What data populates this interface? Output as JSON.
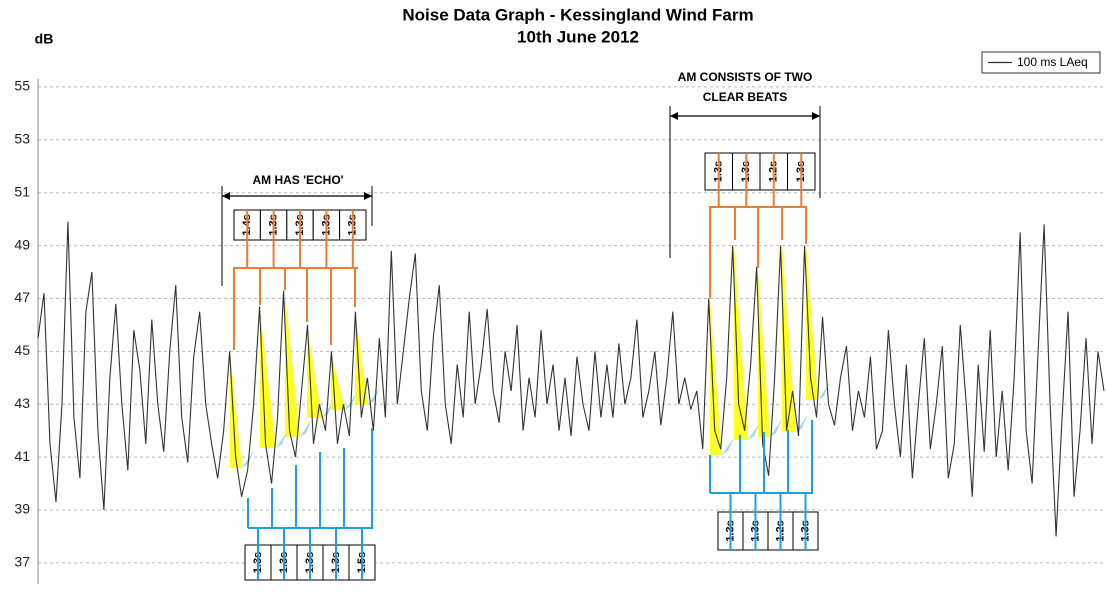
{
  "chart_data": {
    "type": "line",
    "title": "Noise Data Graph - Kessingland  Wind Farm",
    "subtitle": "10th June 2012",
    "y_label": "dB",
    "ylim": [
      36.2,
      55.3
    ],
    "yticks": [
      37,
      39,
      41,
      43,
      45,
      47,
      49,
      51,
      53,
      55
    ],
    "grid": true,
    "legend": "upper right",
    "series": [
      {
        "name": "100 ms LAeq",
        "color": "#333333",
        "values": [
          45.5,
          47.2,
          41.5,
          39.3,
          43,
          49.9,
          42.5,
          40.2,
          46.5,
          48,
          42,
          39,
          44,
          46.8,
          43,
          40.5,
          45.8,
          44.3,
          41.5,
          46.2,
          43,
          41.2,
          45,
          47.5,
          42.5,
          40.8,
          44.8,
          46.5,
          43,
          41.5,
          40.2,
          42,
          45,
          41,
          39.5,
          40.5,
          43,
          46.7,
          41.5,
          40,
          42.5,
          47.3,
          42,
          41,
          43.5,
          46,
          41.5,
          43,
          42,
          45,
          41.5,
          43,
          41.8,
          46.5,
          42.5,
          44,
          42,
          45.5,
          42.5,
          48.8,
          43,
          45,
          47,
          48.7,
          43.5,
          42,
          45.5,
          47.5,
          43,
          41.5,
          44.5,
          42.5,
          46.5,
          43,
          44.5,
          46.6,
          43.5,
          42.3,
          45,
          43.5,
          46,
          42,
          44,
          42.5,
          45.8,
          43,
          44.5,
          42,
          44,
          41.8,
          44.8,
          43,
          42,
          45,
          42.5,
          44.5,
          42.5,
          45.3,
          43,
          44,
          46.2,
          42.5,
          43.5,
          45,
          42.2,
          44,
          46.5,
          43,
          44,
          42.8,
          43.5,
          41.3,
          47,
          42,
          41.3,
          44,
          49,
          43,
          42,
          44.5,
          48.2,
          41.5,
          40.3,
          44,
          49,
          42,
          43.5,
          41.8,
          49,
          44,
          42.5,
          46.3,
          43,
          42.2,
          44,
          45.2,
          42,
          43.5,
          42.5,
          44.8,
          41.3,
          42,
          45.8,
          43,
          41,
          44.5,
          40.2,
          43,
          45.5,
          41.3,
          43,
          45.2,
          40.2,
          41.5,
          46,
          43,
          39.5,
          44.5,
          41.2,
          45.8,
          41,
          43.5,
          40.5,
          44,
          49.5,
          42,
          40,
          45,
          49.8,
          43,
          38,
          42.5,
          46.5,
          39.5,
          42,
          45.5,
          41.5,
          45,
          43.5
        ]
      }
    ],
    "annotations": [
      {
        "text": "AM HAS 'ECHO'",
        "peak_intervals": [
          "1.4s",
          "1.3s",
          "1.3s",
          "1.3s",
          "1.3s"
        ],
        "trough_intervals": [
          "1.3s",
          "1.3s",
          "1.3s",
          "1.3s",
          "1.5s"
        ]
      },
      {
        "text": [
          "AM CONSISTS OF TWO",
          "CLEAR BEATS"
        ],
        "peak_intervals": [
          "1.3s",
          "1.3s",
          "1.2s",
          "1.3s"
        ],
        "trough_intervals": [
          "1.3s",
          "1.3s",
          "1.2s",
          "1.3s"
        ]
      }
    ]
  }
}
